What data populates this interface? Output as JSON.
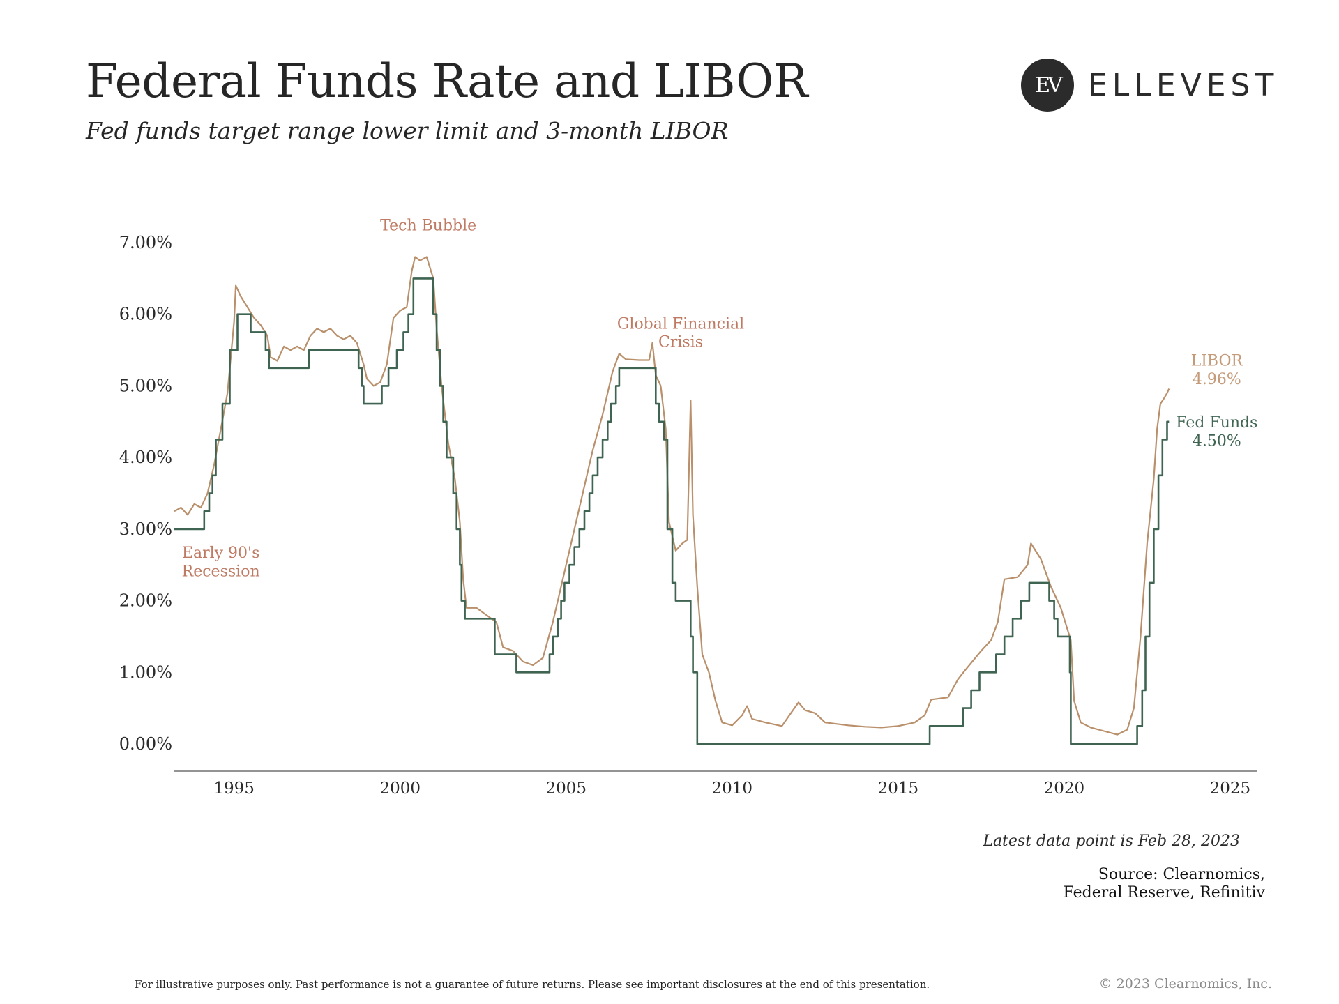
{
  "header": {
    "title": "Federal Funds Rate and LIBOR",
    "subtitle": "Fed funds target range lower limit and 3-month LIBOR"
  },
  "logo": {
    "mark": "EV",
    "word": "ELLEVEST"
  },
  "footer": {
    "latest": "Latest data point is Feb 28, 2023",
    "source_line1": "Source: Clearnomics,",
    "source_line2": "Federal Reserve, Refinitiv",
    "disclaimer": "For illustrative purposes only. Past performance is not a guarantee of future returns. Please see important disclosures at the end of this presentation.",
    "copyright": "© 2023 Clearnomics, Inc."
  },
  "colors": {
    "libor": "#b9906b",
    "fed_funds": "#3f6452",
    "annotation": "#bf7a63",
    "libor_label": "#c49a78",
    "fed_label": "#3f6452",
    "axis": "#555555",
    "text": "#2b2b2b"
  },
  "chart_data": {
    "type": "line",
    "title": "Federal Funds Rate and LIBOR",
    "subtitle": "Fed funds target range lower limit and 3-month LIBOR",
    "xlim": [
      1993.2,
      2025.8
    ],
    "ylim": [
      0,
      7
    ],
    "x_ticks": [
      1995,
      2000,
      2005,
      2010,
      2015,
      2020,
      2025
    ],
    "y_ticks": [
      0,
      1,
      2,
      3,
      4,
      5,
      6,
      7
    ],
    "y_tick_labels": [
      "0.00%",
      "1.00%",
      "2.00%",
      "3.00%",
      "4.00%",
      "5.00%",
      "6.00%",
      "7.00%"
    ],
    "grid": false,
    "annotations": [
      {
        "lines": [
          "Early 90's",
          "Recession"
        ],
        "x": 1994.6,
        "y": 2.6
      },
      {
        "lines": [
          "Tech Bubble"
        ],
        "x": 2000.85,
        "y": 7.17
      },
      {
        "lines": [
          "Global Financial",
          "Crisis"
        ],
        "x": 2008.45,
        "y": 5.8
      }
    ],
    "end_labels": [
      {
        "series": "LIBOR",
        "lines": [
          "LIBOR",
          "4.96%"
        ],
        "x": 2024.6,
        "y": 5.28
      },
      {
        "series": "Fed Funds",
        "lines": [
          "Fed Funds",
          "4.50%"
        ],
        "x": 2024.6,
        "y": 4.42
      }
    ],
    "series": [
      {
        "name": "LIBOR",
        "style": "line",
        "points": [
          [
            1993.2,
            3.25
          ],
          [
            1993.4,
            3.3
          ],
          [
            1993.6,
            3.2
          ],
          [
            1993.8,
            3.35
          ],
          [
            1994.0,
            3.3
          ],
          [
            1994.2,
            3.5
          ],
          [
            1994.4,
            3.9
          ],
          [
            1994.6,
            4.4
          ],
          [
            1994.8,
            4.9
          ],
          [
            1995.0,
            5.9
          ],
          [
            1995.05,
            6.4
          ],
          [
            1995.2,
            6.25
          ],
          [
            1995.4,
            6.1
          ],
          [
            1995.6,
            5.95
          ],
          [
            1995.8,
            5.85
          ],
          [
            1996.0,
            5.7
          ],
          [
            1996.1,
            5.4
          ],
          [
            1996.3,
            5.35
          ],
          [
            1996.5,
            5.55
          ],
          [
            1996.7,
            5.5
          ],
          [
            1996.9,
            5.55
          ],
          [
            1997.1,
            5.5
          ],
          [
            1997.3,
            5.7
          ],
          [
            1997.5,
            5.8
          ],
          [
            1997.7,
            5.75
          ],
          [
            1997.9,
            5.8
          ],
          [
            1998.1,
            5.7
          ],
          [
            1998.3,
            5.65
          ],
          [
            1998.5,
            5.7
          ],
          [
            1998.7,
            5.6
          ],
          [
            1998.9,
            5.3
          ],
          [
            1999.0,
            5.1
          ],
          [
            1999.2,
            5.0
          ],
          [
            1999.4,
            5.05
          ],
          [
            1999.6,
            5.3
          ],
          [
            1999.8,
            5.95
          ],
          [
            2000.0,
            6.05
          ],
          [
            2000.2,
            6.1
          ],
          [
            2000.35,
            6.6
          ],
          [
            2000.45,
            6.8
          ],
          [
            2000.6,
            6.75
          ],
          [
            2000.8,
            6.8
          ],
          [
            2001.0,
            6.5
          ],
          [
            2001.1,
            5.8
          ],
          [
            2001.25,
            5.0
          ],
          [
            2001.45,
            4.2
          ],
          [
            2001.65,
            3.7
          ],
          [
            2001.8,
            3.1
          ],
          [
            2001.9,
            2.3
          ],
          [
            2002.0,
            1.9
          ],
          [
            2002.3,
            1.9
          ],
          [
            2002.6,
            1.8
          ],
          [
            2002.9,
            1.7
          ],
          [
            2003.1,
            1.35
          ],
          [
            2003.4,
            1.3
          ],
          [
            2003.7,
            1.15
          ],
          [
            2004.0,
            1.1
          ],
          [
            2004.3,
            1.2
          ],
          [
            2004.6,
            1.7
          ],
          [
            2004.9,
            2.3
          ],
          [
            2005.2,
            2.9
          ],
          [
            2005.5,
            3.5
          ],
          [
            2005.8,
            4.1
          ],
          [
            2006.1,
            4.6
          ],
          [
            2006.4,
            5.2
          ],
          [
            2006.6,
            5.45
          ],
          [
            2006.8,
            5.37
          ],
          [
            2007.2,
            5.36
          ],
          [
            2007.5,
            5.36
          ],
          [
            2007.6,
            5.6
          ],
          [
            2007.7,
            5.15
          ],
          [
            2007.85,
            5.0
          ],
          [
            2008.0,
            4.4
          ],
          [
            2008.1,
            3.1
          ],
          [
            2008.3,
            2.7
          ],
          [
            2008.5,
            2.8
          ],
          [
            2008.65,
            2.85
          ],
          [
            2008.75,
            4.8
          ],
          [
            2008.82,
            3.2
          ],
          [
            2008.95,
            2.2
          ],
          [
            2009.1,
            1.25
          ],
          [
            2009.3,
            1.0
          ],
          [
            2009.5,
            0.6
          ],
          [
            2009.7,
            0.3
          ],
          [
            2010.0,
            0.26
          ],
          [
            2010.3,
            0.4
          ],
          [
            2010.45,
            0.53
          ],
          [
            2010.6,
            0.35
          ],
          [
            2011.0,
            0.3
          ],
          [
            2011.5,
            0.25
          ],
          [
            2011.8,
            0.45
          ],
          [
            2012.0,
            0.58
          ],
          [
            2012.2,
            0.47
          ],
          [
            2012.5,
            0.43
          ],
          [
            2012.8,
            0.3
          ],
          [
            2013.5,
            0.26
          ],
          [
            2014.0,
            0.24
          ],
          [
            2014.5,
            0.23
          ],
          [
            2015.0,
            0.25
          ],
          [
            2015.5,
            0.3
          ],
          [
            2015.8,
            0.4
          ],
          [
            2016.0,
            0.62
          ],
          [
            2016.5,
            0.65
          ],
          [
            2016.8,
            0.9
          ],
          [
            2017.0,
            1.02
          ],
          [
            2017.5,
            1.3
          ],
          [
            2017.8,
            1.45
          ],
          [
            2018.0,
            1.7
          ],
          [
            2018.2,
            2.3
          ],
          [
            2018.6,
            2.33
          ],
          [
            2018.9,
            2.5
          ],
          [
            2019.0,
            2.8
          ],
          [
            2019.3,
            2.58
          ],
          [
            2019.6,
            2.2
          ],
          [
            2019.9,
            1.9
          ],
          [
            2020.1,
            1.6
          ],
          [
            2020.2,
            1.45
          ],
          [
            2020.3,
            0.6
          ],
          [
            2020.5,
            0.3
          ],
          [
            2020.8,
            0.23
          ],
          [
            2021.2,
            0.18
          ],
          [
            2021.6,
            0.13
          ],
          [
            2021.9,
            0.2
          ],
          [
            2022.1,
            0.5
          ],
          [
            2022.3,
            1.5
          ],
          [
            2022.5,
            2.8
          ],
          [
            2022.7,
            3.7
          ],
          [
            2022.8,
            4.4
          ],
          [
            2022.9,
            4.75
          ],
          [
            2023.0,
            4.82
          ],
          [
            2023.1,
            4.9
          ],
          [
            2023.16,
            4.96
          ]
        ]
      },
      {
        "name": "Fed Funds",
        "style": "step",
        "points": [
          [
            1993.2,
            3.0
          ],
          [
            1994.1,
            3.25
          ],
          [
            1994.25,
            3.5
          ],
          [
            1994.35,
            3.75
          ],
          [
            1994.45,
            4.25
          ],
          [
            1994.65,
            4.75
          ],
          [
            1994.87,
            5.5
          ],
          [
            1995.1,
            6.0
          ],
          [
            1995.5,
            5.75
          ],
          [
            1995.95,
            5.5
          ],
          [
            1996.05,
            5.25
          ],
          [
            1997.25,
            5.5
          ],
          [
            1998.75,
            5.25
          ],
          [
            1998.85,
            5.0
          ],
          [
            1998.9,
            4.75
          ],
          [
            1999.45,
            5.0
          ],
          [
            1999.65,
            5.25
          ],
          [
            1999.9,
            5.5
          ],
          [
            2000.1,
            5.75
          ],
          [
            2000.25,
            6.0
          ],
          [
            2000.4,
            6.5
          ],
          [
            2001.0,
            6.0
          ],
          [
            2001.1,
            5.5
          ],
          [
            2001.2,
            5.0
          ],
          [
            2001.3,
            4.5
          ],
          [
            2001.4,
            4.0
          ],
          [
            2001.6,
            3.5
          ],
          [
            2001.7,
            3.0
          ],
          [
            2001.8,
            2.5
          ],
          [
            2001.85,
            2.0
          ],
          [
            2001.95,
            1.75
          ],
          [
            2002.85,
            1.25
          ],
          [
            2003.5,
            1.0
          ],
          [
            2004.5,
            1.25
          ],
          [
            2004.6,
            1.5
          ],
          [
            2004.75,
            1.75
          ],
          [
            2004.85,
            2.0
          ],
          [
            2004.95,
            2.25
          ],
          [
            2005.1,
            2.5
          ],
          [
            2005.25,
            2.75
          ],
          [
            2005.4,
            3.0
          ],
          [
            2005.55,
            3.25
          ],
          [
            2005.7,
            3.5
          ],
          [
            2005.8,
            3.75
          ],
          [
            2005.95,
            4.0
          ],
          [
            2006.1,
            4.25
          ],
          [
            2006.25,
            4.5
          ],
          [
            2006.35,
            4.75
          ],
          [
            2006.5,
            5.0
          ],
          [
            2006.6,
            5.25
          ],
          [
            2007.7,
            4.75
          ],
          [
            2007.8,
            4.5
          ],
          [
            2007.95,
            4.25
          ],
          [
            2008.05,
            3.0
          ],
          [
            2008.2,
            2.25
          ],
          [
            2008.3,
            2.0
          ],
          [
            2008.75,
            1.5
          ],
          [
            2008.82,
            1.0
          ],
          [
            2008.95,
            0.0
          ],
          [
            2015.95,
            0.25
          ],
          [
            2016.95,
            0.5
          ],
          [
            2017.2,
            0.75
          ],
          [
            2017.45,
            1.0
          ],
          [
            2017.95,
            1.25
          ],
          [
            2018.2,
            1.5
          ],
          [
            2018.45,
            1.75
          ],
          [
            2018.7,
            2.0
          ],
          [
            2018.95,
            2.25
          ],
          [
            2019.55,
            2.0
          ],
          [
            2019.7,
            1.75
          ],
          [
            2019.8,
            1.5
          ],
          [
            2020.17,
            1.0
          ],
          [
            2020.2,
            0.0
          ],
          [
            2022.2,
            0.25
          ],
          [
            2022.35,
            0.75
          ],
          [
            2022.45,
            1.5
          ],
          [
            2022.57,
            2.25
          ],
          [
            2022.7,
            3.0
          ],
          [
            2022.84,
            3.75
          ],
          [
            2022.96,
            4.25
          ],
          [
            2023.1,
            4.5
          ],
          [
            2023.16,
            4.5
          ]
        ]
      }
    ]
  }
}
